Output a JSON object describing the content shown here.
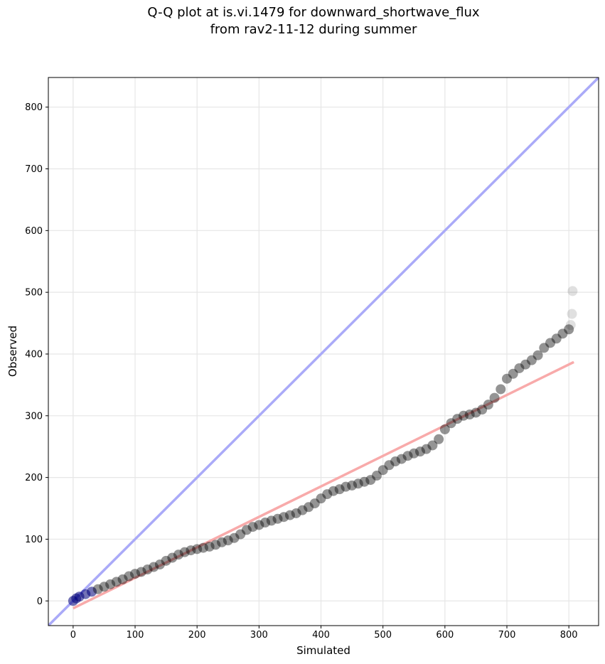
{
  "chart_data": {
    "type": "scatter",
    "title": "Q-Q plot at is.vi.1479 for downward_shortwave_flux",
    "subtitle": "from rav2-11-12 during summer",
    "xlabel": "Simulated",
    "ylabel": "Observed",
    "xlim": [
      -40,
      848
    ],
    "ylim": [
      -40,
      848
    ],
    "xticks": [
      0,
      100,
      200,
      300,
      400,
      500,
      600,
      700,
      800
    ],
    "yticks": [
      0,
      100,
      200,
      300,
      400,
      500,
      600,
      700,
      800
    ],
    "grid": true,
    "colors": {
      "points": "#000000",
      "identity_line": "#aaaaf8",
      "fit_line": "#f8aaaa",
      "low_values": "#00007a"
    },
    "series": [
      {
        "kind": "quantile-points",
        "x": [
          0,
          5,
          10,
          20,
          30,
          40,
          50,
          60,
          70,
          80,
          90,
          100,
          110,
          120,
          130,
          140,
          150,
          160,
          170,
          180,
          190,
          200,
          210,
          220,
          230,
          240,
          250,
          260,
          270,
          280,
          290,
          300,
          310,
          320,
          330,
          340,
          350,
          360,
          370,
          380,
          390,
          400,
          410,
          420,
          430,
          440,
          450,
          460,
          470,
          480,
          490,
          500,
          510,
          520,
          530,
          540,
          550,
          560,
          570,
          580,
          590,
          600,
          610,
          620,
          630,
          640,
          650,
          660,
          670,
          680,
          690,
          700,
          710,
          720,
          730,
          740,
          750,
          760,
          770,
          780,
          790,
          800,
          803,
          805,
          806
        ],
        "y": [
          0,
          4,
          7,
          11,
          15,
          19,
          23,
          27,
          31,
          35,
          40,
          44,
          47,
          51,
          55,
          59,
          65,
          70,
          75,
          79,
          82,
          84,
          86,
          88,
          91,
          95,
          98,
          102,
          108,
          115,
          120,
          123,
          127,
          130,
          133,
          136,
          139,
          142,
          147,
          152,
          158,
          166,
          173,
          178,
          181,
          185,
          187,
          190,
          193,
          196,
          203,
          212,
          220,
          226,
          230,
          235,
          239,
          242,
          246,
          252,
          262,
          278,
          288,
          295,
          300,
          302,
          305,
          310,
          318,
          329,
          343,
          360,
          368,
          377,
          383,
          390,
          398,
          410,
          418,
          425,
          433,
          440,
          447,
          465,
          502
        ]
      },
      {
        "kind": "identity-line",
        "x": [
          -40,
          848
        ],
        "y": [
          -40,
          848
        ]
      },
      {
        "kind": "fit-line",
        "x": [
          0,
          808
        ],
        "y": [
          -12,
          387
        ]
      }
    ]
  }
}
